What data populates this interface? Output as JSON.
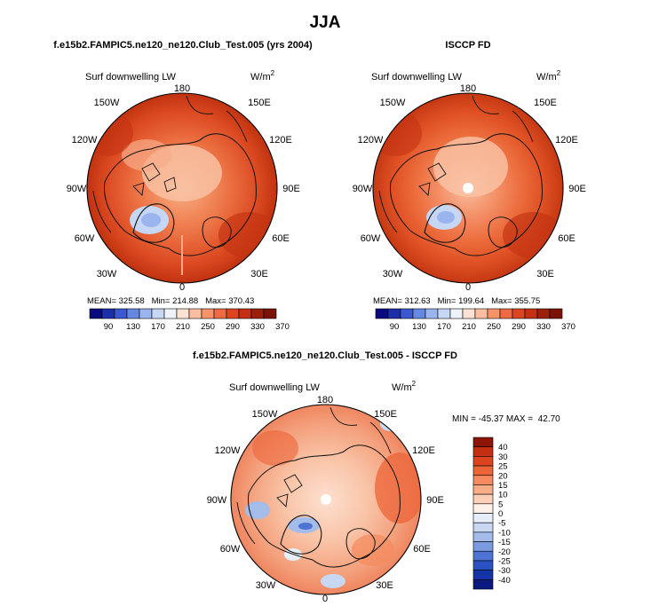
{
  "figure": {
    "title": "JJA",
    "panels": [
      {
        "id": "model",
        "header": "f.e15b2.FAMPIC5.ne120_ne120.Club_Test.005 (yrs 2004)",
        "variable_label": "Surf downwelling LW",
        "units_base": "W/m",
        "units_exp": "2",
        "stats_text": "MEAN= 325.58   Min= 214.88   Max= 370.43",
        "stats": {
          "mean": 325.58,
          "min": 214.88,
          "max": 370.43
        },
        "has_missing_pole": false
      },
      {
        "id": "obs",
        "header": "ISCCP FD",
        "variable_label": "Surf downwelling LW",
        "units_base": "W/m",
        "units_exp": "2",
        "stats_text": "MEAN= 312.63   Min= 199.64   Max= 355.75",
        "stats": {
          "mean": 312.63,
          "min": 199.64,
          "max": 355.75
        },
        "has_missing_pole": true
      },
      {
        "id": "diff",
        "header": "f.e15b2.FAMPIC5.ne120_ne120.Club_Test.005 - ISCCP FD",
        "variable_label": "Surf downwelling LW",
        "units_base": "W/m",
        "units_exp": "2",
        "stats_text": "MIN = -45.37 MAX =  42.70",
        "stats": {
          "min": -45.37,
          "max": 42.7
        },
        "has_missing_pole": true
      }
    ],
    "longitude_labels": {
      "top": "180",
      "upper_left": "150W",
      "upper_right": "150E",
      "left_upper": "120W",
      "right_upper": "120E",
      "left": "90W",
      "right": "90E",
      "left_lower": "60W",
      "right_lower": "60E",
      "lower_left": "30W",
      "lower_right": "30E",
      "bottom": "0"
    },
    "abs_colorbar": {
      "labels": [
        "90",
        "130",
        "170",
        "210",
        "250",
        "290",
        "330",
        "370"
      ],
      "colors": [
        "#0a0a80",
        "#1c2fa8",
        "#3b58d0",
        "#6688e0",
        "#9ab4ee",
        "#c6d6f5",
        "#eef2fb",
        "#fde1d2",
        "#fbbd9f",
        "#f7936a",
        "#ee6a42",
        "#dd4422",
        "#c52f14",
        "#9c1f0a",
        "#7a1306"
      ]
    },
    "diff_colorbar": {
      "labels": [
        "40",
        "30",
        "25",
        "20",
        "15",
        "10",
        "5",
        "0",
        "-5",
        "-10",
        "-15",
        "-20",
        "-25",
        "-30",
        "-40"
      ],
      "colors": [
        "#8c1408",
        "#c42f12",
        "#dc4420",
        "#ec6438",
        "#f58a5e",
        "#f9ae88",
        "#fcd0b8",
        "#fdf0e8",
        "#e6eef9",
        "#c8d8f3",
        "#a3bcea",
        "#7b9be0",
        "#4d74d3",
        "#2a50c2",
        "#1434a6",
        "#0a1a80"
      ]
    }
  },
  "chart_data": [
    {
      "type": "polar-map",
      "projection": "north polar stereographic",
      "season": "JJA",
      "title": "f.e15b2.FAMPIC5.ne120_ne120.Club_Test.005 (yrs 2004)",
      "variable": "Surf downwelling LW",
      "units": "W/m^2",
      "mean": 325.58,
      "min": 214.88,
      "max": 370.43,
      "contour_levels": [
        90,
        130,
        170,
        210,
        250,
        290,
        330,
        370
      ]
    },
    {
      "type": "polar-map",
      "projection": "north polar stereographic",
      "season": "JJA",
      "title": "ISCCP FD",
      "variable": "Surf downwelling LW",
      "units": "W/m^2",
      "mean": 312.63,
      "min": 199.64,
      "max": 355.75,
      "contour_levels": [
        90,
        130,
        170,
        210,
        250,
        290,
        330,
        370
      ]
    },
    {
      "type": "polar-map",
      "projection": "north polar stereographic",
      "season": "JJA",
      "title": "f.e15b2.FAMPIC5.ne120_ne120.Club_Test.005 - ISCCP FD",
      "variable": "Surf downwelling LW",
      "units": "W/m^2",
      "min": -45.37,
      "max": 42.7,
      "contour_levels": [
        -40,
        -30,
        -25,
        -20,
        -15,
        -10,
        -5,
        0,
        5,
        10,
        15,
        20,
        25,
        30,
        40
      ]
    }
  ]
}
